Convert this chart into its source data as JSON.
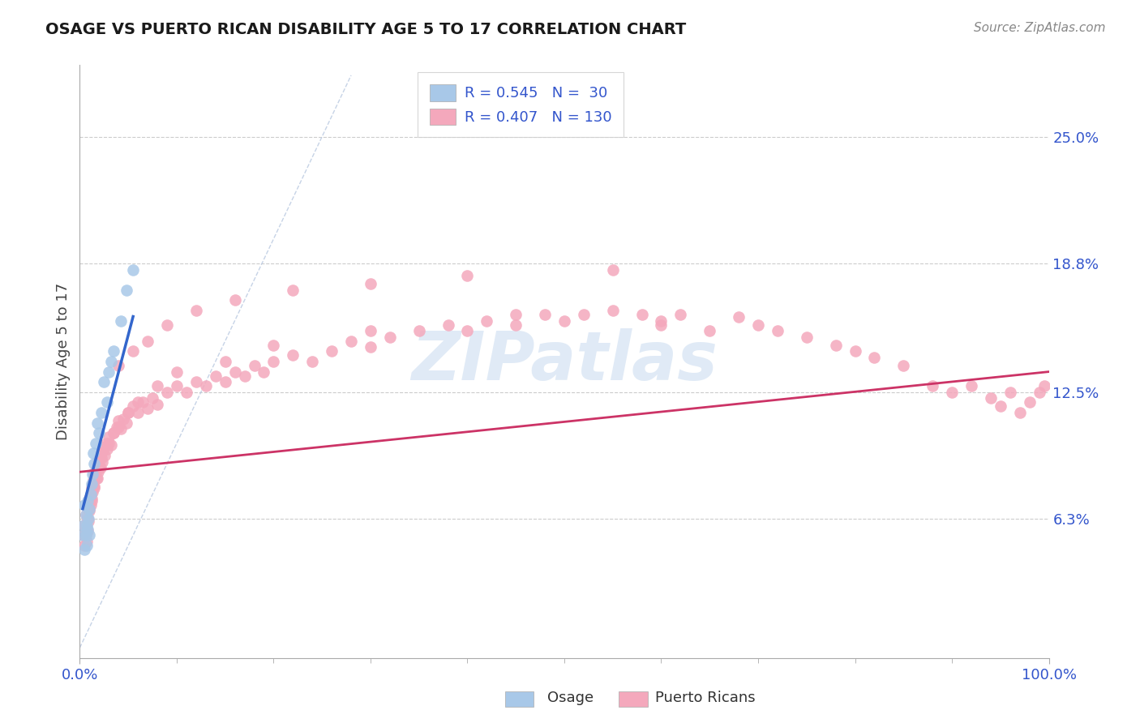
{
  "title": "OSAGE VS PUERTO RICAN DISABILITY AGE 5 TO 17 CORRELATION CHART",
  "source_text": "Source: ZipAtlas.com",
  "ylabel": "Disability Age 5 to 17",
  "xlim": [
    0,
    1.0
  ],
  "ylim": [
    -0.005,
    0.285
  ],
  "ytick_vals": [
    0.063,
    0.125,
    0.188,
    0.25
  ],
  "ytick_labels": [
    "6.3%",
    "12.5%",
    "18.8%",
    "25.0%"
  ],
  "xtick_vals": [
    0.0,
    1.0
  ],
  "xtick_labels": [
    "0.0%",
    "100.0%"
  ],
  "osage_color": "#a8c8e8",
  "pr_color": "#f4a8bc",
  "trend_blue": "#3366cc",
  "trend_pink": "#cc3366",
  "ref_line_color": "#b8c8e0",
  "watermark_color": "#ccddf0",
  "legend_text_color": "#3355cc",
  "tick_label_color": "#3355cc",
  "osage_x": [
    0.003,
    0.004,
    0.005,
    0.005,
    0.006,
    0.006,
    0.007,
    0.007,
    0.008,
    0.008,
    0.009,
    0.01,
    0.01,
    0.011,
    0.012,
    0.013,
    0.014,
    0.015,
    0.016,
    0.018,
    0.02,
    0.022,
    0.025,
    0.028,
    0.03,
    0.032,
    0.035,
    0.042,
    0.048,
    0.055
  ],
  "osage_y": [
    0.055,
    0.06,
    0.07,
    0.048,
    0.065,
    0.055,
    0.05,
    0.06,
    0.072,
    0.058,
    0.063,
    0.068,
    0.055,
    0.075,
    0.08,
    0.085,
    0.095,
    0.09,
    0.1,
    0.11,
    0.105,
    0.115,
    0.13,
    0.12,
    0.135,
    0.14,
    0.145,
    0.16,
    0.175,
    0.185
  ],
  "pr_x": [
    0.004,
    0.005,
    0.005,
    0.006,
    0.006,
    0.007,
    0.007,
    0.008,
    0.008,
    0.009,
    0.009,
    0.01,
    0.01,
    0.011,
    0.011,
    0.012,
    0.012,
    0.013,
    0.013,
    0.014,
    0.015,
    0.015,
    0.016,
    0.017,
    0.018,
    0.019,
    0.02,
    0.021,
    0.022,
    0.023,
    0.025,
    0.026,
    0.027,
    0.028,
    0.03,
    0.032,
    0.035,
    0.038,
    0.04,
    0.042,
    0.045,
    0.048,
    0.05,
    0.055,
    0.06,
    0.065,
    0.07,
    0.075,
    0.08,
    0.09,
    0.1,
    0.11,
    0.12,
    0.13,
    0.14,
    0.15,
    0.16,
    0.17,
    0.18,
    0.19,
    0.2,
    0.22,
    0.24,
    0.26,
    0.28,
    0.3,
    0.32,
    0.35,
    0.38,
    0.4,
    0.42,
    0.45,
    0.48,
    0.5,
    0.52,
    0.55,
    0.58,
    0.6,
    0.62,
    0.65,
    0.68,
    0.7,
    0.72,
    0.75,
    0.78,
    0.8,
    0.82,
    0.85,
    0.88,
    0.9,
    0.92,
    0.94,
    0.95,
    0.96,
    0.97,
    0.98,
    0.99,
    0.995,
    0.008,
    0.01,
    0.012,
    0.015,
    0.018,
    0.02,
    0.022,
    0.025,
    0.03,
    0.035,
    0.04,
    0.05,
    0.06,
    0.08,
    0.1,
    0.15,
    0.2,
    0.3,
    0.45,
    0.6,
    0.04,
    0.055,
    0.07,
    0.09,
    0.12,
    0.16,
    0.22,
    0.3,
    0.4,
    0.55
  ],
  "pr_y": [
    0.055,
    0.06,
    0.05,
    0.065,
    0.055,
    0.058,
    0.052,
    0.063,
    0.057,
    0.068,
    0.062,
    0.073,
    0.067,
    0.075,
    0.07,
    0.078,
    0.072,
    0.08,
    0.076,
    0.082,
    0.085,
    0.079,
    0.087,
    0.083,
    0.09,
    0.086,
    0.092,
    0.088,
    0.095,
    0.091,
    0.098,
    0.094,
    0.1,
    0.097,
    0.103,
    0.099,
    0.105,
    0.108,
    0.111,
    0.107,
    0.112,
    0.11,
    0.115,
    0.118,
    0.115,
    0.12,
    0.117,
    0.122,
    0.119,
    0.125,
    0.128,
    0.125,
    0.13,
    0.128,
    0.133,
    0.13,
    0.135,
    0.133,
    0.138,
    0.135,
    0.14,
    0.143,
    0.14,
    0.145,
    0.15,
    0.147,
    0.152,
    0.155,
    0.158,
    0.155,
    0.16,
    0.158,
    0.163,
    0.16,
    0.163,
    0.165,
    0.163,
    0.158,
    0.163,
    0.155,
    0.162,
    0.158,
    0.155,
    0.152,
    0.148,
    0.145,
    0.142,
    0.138,
    0.128,
    0.125,
    0.128,
    0.122,
    0.118,
    0.125,
    0.115,
    0.12,
    0.125,
    0.128,
    0.063,
    0.068,
    0.073,
    0.078,
    0.083,
    0.088,
    0.093,
    0.098,
    0.1,
    0.105,
    0.108,
    0.115,
    0.12,
    0.128,
    0.135,
    0.14,
    0.148,
    0.155,
    0.163,
    0.16,
    0.138,
    0.145,
    0.15,
    0.158,
    0.165,
    0.17,
    0.175,
    0.178,
    0.182,
    0.185
  ],
  "osage_trend_x": [
    0.003,
    0.055
  ],
  "osage_trend_y": [
    0.068,
    0.162
  ],
  "pr_trend_x": [
    0.0,
    1.0
  ],
  "pr_trend_y": [
    0.086,
    0.135
  ]
}
